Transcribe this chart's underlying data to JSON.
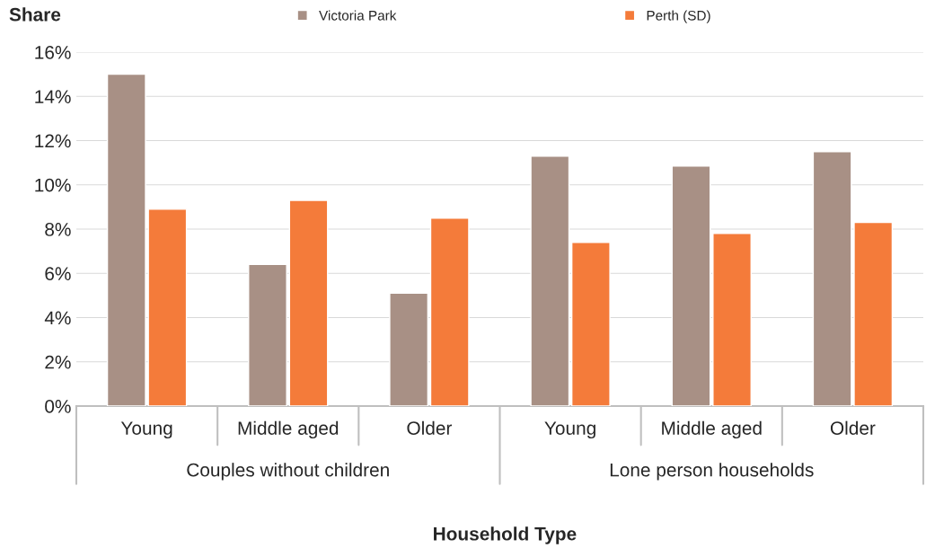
{
  "chart_data": {
    "type": "bar",
    "xlabel": "Household Type",
    "ylabel": "Share",
    "categories": [
      "Young",
      "Middle aged",
      "Older",
      "Young",
      "Middle aged",
      "Older"
    ],
    "series": [
      {
        "name": "Victoria Park",
        "color": "#a89085",
        "values": [
          15.0,
          6.4,
          5.1,
          11.3,
          10.85,
          11.5
        ]
      },
      {
        "name": "Perth (SD)",
        "color": "#f47b3a",
        "values": [
          8.9,
          9.3,
          8.5,
          7.4,
          7.8,
          8.3
        ]
      }
    ],
    "annotations": [
      "Couples without children",
      "Lone person households"
    ],
    "ylim": [
      0,
      16
    ],
    "yticks": [
      {
        "value": 0,
        "label": "0%"
      },
      {
        "value": 2,
        "label": "2%"
      },
      {
        "value": 4,
        "label": "4%"
      },
      {
        "value": 6,
        "label": "6%"
      },
      {
        "value": 8,
        "label": "8%"
      },
      {
        "value": 10,
        "label": "10%"
      },
      {
        "value": 12,
        "label": "12%"
      },
      {
        "value": 14,
        "label": "14%"
      },
      {
        "value": 16,
        "label": "16%"
      }
    ],
    "grid": "y",
    "legend": "top"
  }
}
